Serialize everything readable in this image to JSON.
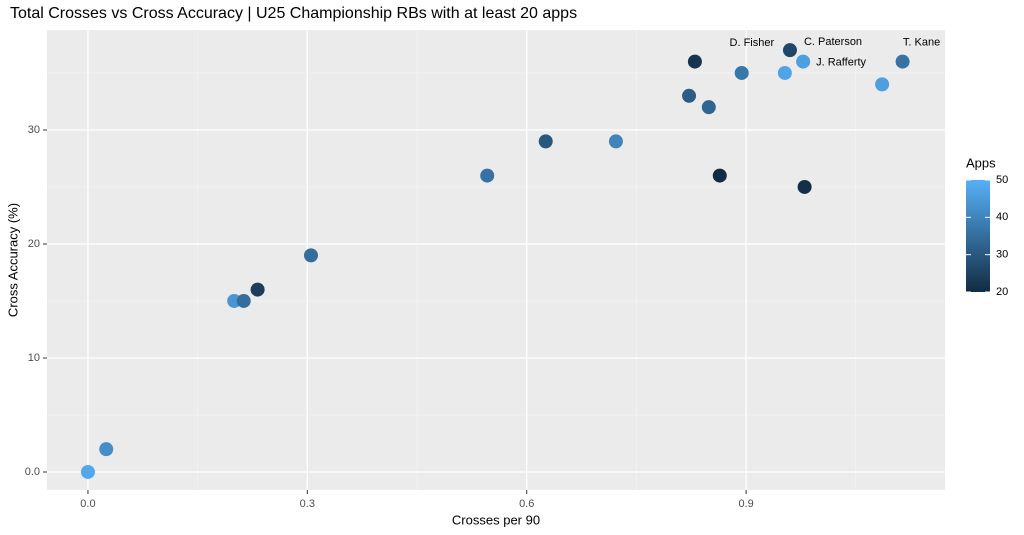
{
  "chart_data": {
    "type": "scatter",
    "title": "Total Crosses vs Cross Accuracy | U25 Championship RBs with at least 20 apps",
    "x_label": "Crosses per 90",
    "y_label": "Cross Accuracy (%)",
    "x": [
      0.0,
      0.025,
      0.2,
      0.213,
      0.232,
      0.305,
      0.546,
      0.626,
      0.722,
      0.83,
      0.822,
      0.849,
      0.894,
      0.864,
      0.96,
      0.953,
      0.978,
      0.98,
      1.086,
      1.114
    ],
    "values": [
      0,
      2,
      15,
      15,
      16,
      19,
      26,
      29,
      29,
      36,
      33,
      32,
      35,
      26,
      37,
      35,
      36,
      25,
      34,
      36
    ],
    "apps": [
      48,
      42,
      44,
      35,
      24,
      35,
      36,
      30,
      40,
      22,
      31,
      33,
      37,
      20,
      26,
      47,
      46,
      21,
      46,
      36
    ],
    "labels": [
      null,
      null,
      null,
      null,
      null,
      null,
      null,
      null,
      null,
      null,
      null,
      null,
      null,
      null,
      "C. Paterson",
      "D. Fisher",
      "J. Rafferty",
      null,
      null,
      "T. Kane"
    ],
    "xlim": [
      -0.056,
      1.172
    ],
    "ylim": [
      -1.58,
      38.77
    ],
    "xticks": [
      {
        "value": 0,
        "label": "0.0"
      },
      0.3,
      0.6,
      0.9
    ],
    "yticks": [
      {
        "value": 0,
        "label": "0.0"
      },
      10,
      20,
      30
    ],
    "grid": true,
    "color_scale": {
      "title": "Apps",
      "low": "#132B43",
      "high": "#56B1F7",
      "lim": [
        20,
        50
      ],
      "ticks": [
        20,
        30,
        40,
        50
      ]
    }
  }
}
